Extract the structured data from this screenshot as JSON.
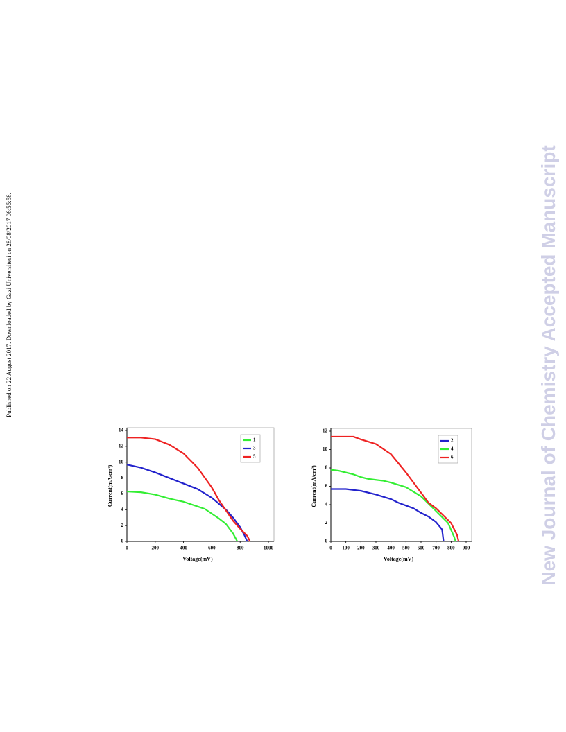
{
  "sidebar": {
    "published": "Published on 22 August 2017. Downloaded by Gazi Universitesi on 28/08/2017 06:55:58.",
    "journal": "New Journal of Chemistry Accepted Manuscript"
  },
  "chart_data": [
    {
      "type": "line",
      "xlabel": "Voltage(mV)",
      "ylabel": "Current(mA/cm²)",
      "xlim": [
        0,
        1000
      ],
      "xticks": [
        0,
        200,
        400,
        600,
        800,
        1000
      ],
      "ylim": [
        0,
        14
      ],
      "yticks": [
        0,
        2,
        4,
        6,
        8,
        10,
        12,
        14
      ],
      "legend": "upper right",
      "series": [
        {
          "name": "1",
          "color": "#33ee33",
          "x": [
            0,
            100,
            200,
            300,
            400,
            500,
            550,
            600,
            650,
            700,
            750,
            780
          ],
          "values": [
            6.3,
            6.2,
            5.9,
            5.4,
            5.0,
            4.4,
            4.1,
            3.5,
            2.9,
            2.2,
            1.0,
            0
          ]
        },
        {
          "name": "3",
          "color": "#2222cc",
          "x": [
            0,
            100,
            200,
            300,
            400,
            500,
            600,
            700,
            750,
            800,
            830,
            850
          ],
          "values": [
            9.7,
            9.3,
            8.7,
            8.0,
            7.3,
            6.6,
            5.5,
            4.0,
            3.0,
            1.8,
            0.8,
            0
          ]
        },
        {
          "name": "5",
          "color": "#ee2222",
          "x": [
            0,
            100,
            200,
            300,
            400,
            500,
            600,
            650,
            700,
            750,
            800,
            850,
            870
          ],
          "values": [
            13.1,
            13.1,
            12.9,
            12.2,
            11.1,
            9.3,
            6.8,
            5.2,
            3.9,
            2.6,
            1.6,
            0.7,
            0
          ]
        }
      ]
    },
    {
      "type": "line",
      "xlabel": "Voltage(mV)",
      "ylabel": "Current(mA/cm²)",
      "xlim": [
        0,
        900
      ],
      "xticks": [
        0,
        100,
        200,
        300,
        400,
        500,
        600,
        700,
        800,
        900
      ],
      "ylim": [
        0,
        12
      ],
      "yticks": [
        0,
        2,
        4,
        6,
        8,
        10,
        12
      ],
      "legend": "upper right",
      "series": [
        {
          "name": "2",
          "color": "#2222cc",
          "x": [
            0,
            100,
            200,
            300,
            400,
            450,
            500,
            550,
            600,
            650,
            700,
            740,
            750
          ],
          "values": [
            5.7,
            5.7,
            5.5,
            5.1,
            4.6,
            4.2,
            3.9,
            3.6,
            3.1,
            2.7,
            2.1,
            1.3,
            0
          ]
        },
        {
          "name": "4",
          "color": "#33ee33",
          "x": [
            0,
            50,
            100,
            150,
            200,
            250,
            300,
            350,
            400,
            500,
            600,
            700,
            780,
            820,
            830
          ],
          "values": [
            7.8,
            7.7,
            7.5,
            7.3,
            7.0,
            6.8,
            6.7,
            6.6,
            6.4,
            5.9,
            4.9,
            3.3,
            2.0,
            0.5,
            0
          ]
        },
        {
          "name": "6",
          "color": "#ee2222",
          "x": [
            0,
            150,
            200,
            300,
            400,
            500,
            600,
            650,
            700,
            750,
            800,
            840,
            850
          ],
          "values": [
            11.4,
            11.4,
            11.1,
            10.6,
            9.5,
            7.5,
            5.3,
            4.2,
            3.6,
            2.8,
            2.0,
            0.7,
            0
          ]
        }
      ]
    }
  ]
}
